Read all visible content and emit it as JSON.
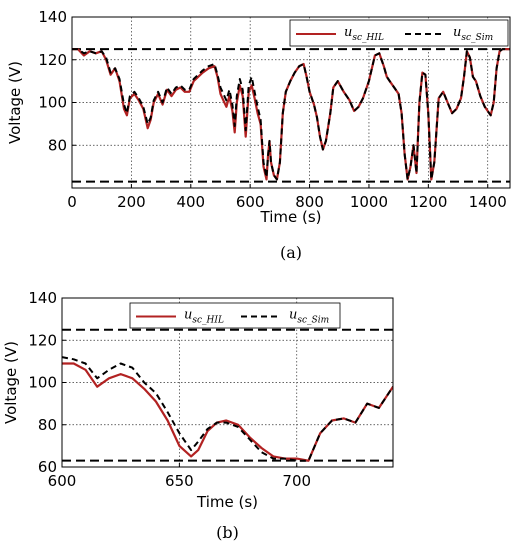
{
  "chart_data": [
    {
      "panel": "(a)",
      "type": "line",
      "xlabel": "Time (s)",
      "ylabel": "Voltage (V)",
      "xlim": [
        0,
        1475
      ],
      "ylim": [
        60,
        140
      ],
      "xticks": [
        0,
        200,
        400,
        600,
        800,
        1000,
        1200,
        1400
      ],
      "yticks": [
        60,
        80,
        100,
        120,
        140
      ],
      "ytick_labels": [
        "",
        "80",
        "100",
        "120",
        "140"
      ],
      "grid": true,
      "legend_position": "top-right",
      "hlines": [
        125,
        63
      ],
      "series": [
        {
          "name": "u_sc_HIL",
          "legend_main": "u",
          "legend_sub": "sc_HIL",
          "color": "#b22222",
          "style": "solid",
          "x": [
            0,
            20,
            40,
            60,
            80,
            100,
            115,
            130,
            145,
            160,
            175,
            185,
            195,
            210,
            225,
            240,
            255,
            265,
            275,
            290,
            305,
            320,
            335,
            350,
            365,
            380,
            395,
            410,
            425,
            440,
            460,
            480,
            490,
            500,
            510,
            520,
            530,
            540,
            548,
            555,
            565,
            575,
            585,
            595,
            605,
            615,
            625,
            635,
            645,
            655,
            660,
            665,
            670,
            680,
            690,
            700,
            710,
            720,
            735,
            750,
            765,
            780,
            790,
            800,
            815,
            825,
            835,
            845,
            855,
            870,
            880,
            895,
            915,
            935,
            950,
            965,
            980,
            1000,
            1020,
            1035,
            1050,
            1060,
            1070,
            1085,
            1100,
            1110,
            1120,
            1130,
            1140,
            1150,
            1160,
            1170,
            1180,
            1190,
            1200,
            1210,
            1220,
            1235,
            1250,
            1265,
            1280,
            1295,
            1310,
            1320,
            1330,
            1340,
            1350,
            1360,
            1375,
            1390,
            1400,
            1410,
            1420,
            1430,
            1440,
            1450,
            1460,
            1475
          ],
          "y": [
            125,
            125,
            122,
            124,
            123,
            124,
            120,
            113,
            116,
            110,
            97,
            94,
            102,
            104,
            101,
            97,
            88,
            92,
            100,
            104,
            99,
            106,
            103,
            106,
            107,
            105,
            105,
            110,
            112,
            114,
            116,
            117,
            112,
            104,
            101,
            98,
            103,
            96,
            86,
            100,
            108,
            103,
            84,
            105,
            108,
            102,
            95,
            90,
            70,
            64,
            75,
            82,
            72,
            66,
            64,
            72,
            95,
            105,
            110,
            114,
            117,
            118,
            112,
            105,
            99,
            93,
            84,
            78,
            82,
            95,
            107,
            110,
            105,
            101,
            96,
            98,
            102,
            110,
            122,
            123,
            117,
            112,
            110,
            107,
            104,
            95,
            76,
            64,
            70,
            80,
            67,
            100,
            114,
            113,
            95,
            64,
            72,
            102,
            105,
            100,
            95,
            97,
            102,
            112,
            124,
            121,
            112,
            110,
            103,
            98,
            96,
            94,
            100,
            116,
            124,
            125,
            125,
            125
          ]
        },
        {
          "name": "u_sc_Sim",
          "legend_main": "u",
          "legend_sub": "sc_Sim",
          "color": "#000000",
          "style": "dashed",
          "x": [
            0,
            20,
            40,
            60,
            80,
            100,
            115,
            130,
            145,
            160,
            175,
            185,
            195,
            210,
            225,
            240,
            255,
            265,
            275,
            290,
            305,
            320,
            335,
            350,
            365,
            380,
            395,
            410,
            425,
            440,
            460,
            480,
            490,
            500,
            510,
            520,
            530,
            540,
            548,
            555,
            565,
            575,
            585,
            595,
            605,
            615,
            625,
            635,
            645,
            655,
            660,
            665,
            670,
            680,
            690,
            700,
            710,
            720,
            735,
            750,
            765,
            780,
            790,
            800,
            815,
            825,
            835,
            845,
            855,
            870,
            880,
            895,
            915,
            935,
            950,
            965,
            980,
            1000,
            1020,
            1035,
            1050,
            1060,
            1070,
            1085,
            1100,
            1110,
            1120,
            1130,
            1140,
            1150,
            1160,
            1170,
            1180,
            1190,
            1200,
            1210,
            1220,
            1235,
            1250,
            1265,
            1280,
            1295,
            1310,
            1320,
            1330,
            1340,
            1350,
            1360,
            1375,
            1390,
            1400,
            1410,
            1420,
            1430,
            1440,
            1450,
            1460,
            1475
          ],
          "y": [
            125,
            125,
            123,
            124,
            123,
            124,
            121,
            114,
            116,
            111,
            99,
            95,
            103,
            105,
            102,
            98,
            90,
            93,
            101,
            105,
            100,
            107,
            104,
            107,
            108,
            106,
            106,
            111,
            113,
            115,
            117,
            118,
            113,
            107,
            104,
            101,
            106,
            99,
            89,
            103,
            111,
            106,
            87,
            108,
            112,
            105,
            98,
            92,
            72,
            65,
            75,
            82,
            72,
            66,
            64,
            72,
            95,
            105,
            110,
            114,
            117,
            118,
            112,
            105,
            99,
            93,
            84,
            78,
            82,
            95,
            107,
            110,
            105,
            101,
            96,
            98,
            102,
            110,
            122,
            123,
            117,
            112,
            110,
            107,
            104,
            95,
            76,
            64,
            70,
            80,
            67,
            100,
            114,
            113,
            95,
            64,
            72,
            102,
            105,
            100,
            95,
            97,
            102,
            112,
            124,
            121,
            112,
            110,
            103,
            98,
            96,
            94,
            100,
            116,
            124,
            125,
            125,
            125
          ]
        }
      ]
    },
    {
      "panel": "(b)",
      "type": "line",
      "xlabel": "Time (s)",
      "ylabel": "Voltage (V)",
      "xlim": [
        600,
        741
      ],
      "ylim": [
        60,
        140
      ],
      "xticks": [
        600,
        650,
        700
      ],
      "yticks": [
        60,
        80,
        100,
        120,
        140
      ],
      "ytick_labels": [
        "60",
        "80",
        "100",
        "120",
        "140"
      ],
      "grid": true,
      "legend_position": "top-center",
      "hlines": [
        125,
        63
      ],
      "series": [
        {
          "name": "u_sc_HIL",
          "legend_main": "u",
          "legend_sub": "sc_HIL",
          "color": "#b22222",
          "style": "solid",
          "x": [
            600,
            605,
            610,
            615,
            620,
            625,
            630,
            635,
            640,
            645,
            650,
            655,
            658,
            662,
            666,
            670,
            675,
            680,
            685,
            690,
            695,
            700,
            705,
            710,
            715,
            720,
            725,
            730,
            735,
            741
          ],
          "y": [
            109,
            109,
            106,
            98,
            102,
            104,
            102,
            97,
            91,
            82,
            70,
            65,
            68,
            77,
            81,
            82,
            80,
            74,
            69,
            65,
            64,
            64,
            63,
            76,
            82,
            83,
            81,
            90,
            88,
            98
          ]
        },
        {
          "name": "u_sc_Sim",
          "legend_main": "u",
          "legend_sub": "sc_Sim",
          "color": "#000000",
          "style": "dashed",
          "x": [
            600,
            605,
            610,
            615,
            620,
            625,
            630,
            635,
            640,
            645,
            650,
            655,
            658,
            662,
            666,
            670,
            675,
            680,
            685,
            690,
            695,
            700,
            705,
            710,
            715,
            720,
            725,
            730,
            735,
            741
          ],
          "y": [
            112,
            111,
            109,
            102,
            106,
            109,
            107,
            100,
            95,
            86,
            76,
            68,
            72,
            78,
            81,
            81,
            79,
            73,
            67,
            64,
            64,
            63,
            63,
            76,
            82,
            83,
            81,
            90,
            88,
            98
          ]
        }
      ]
    }
  ]
}
